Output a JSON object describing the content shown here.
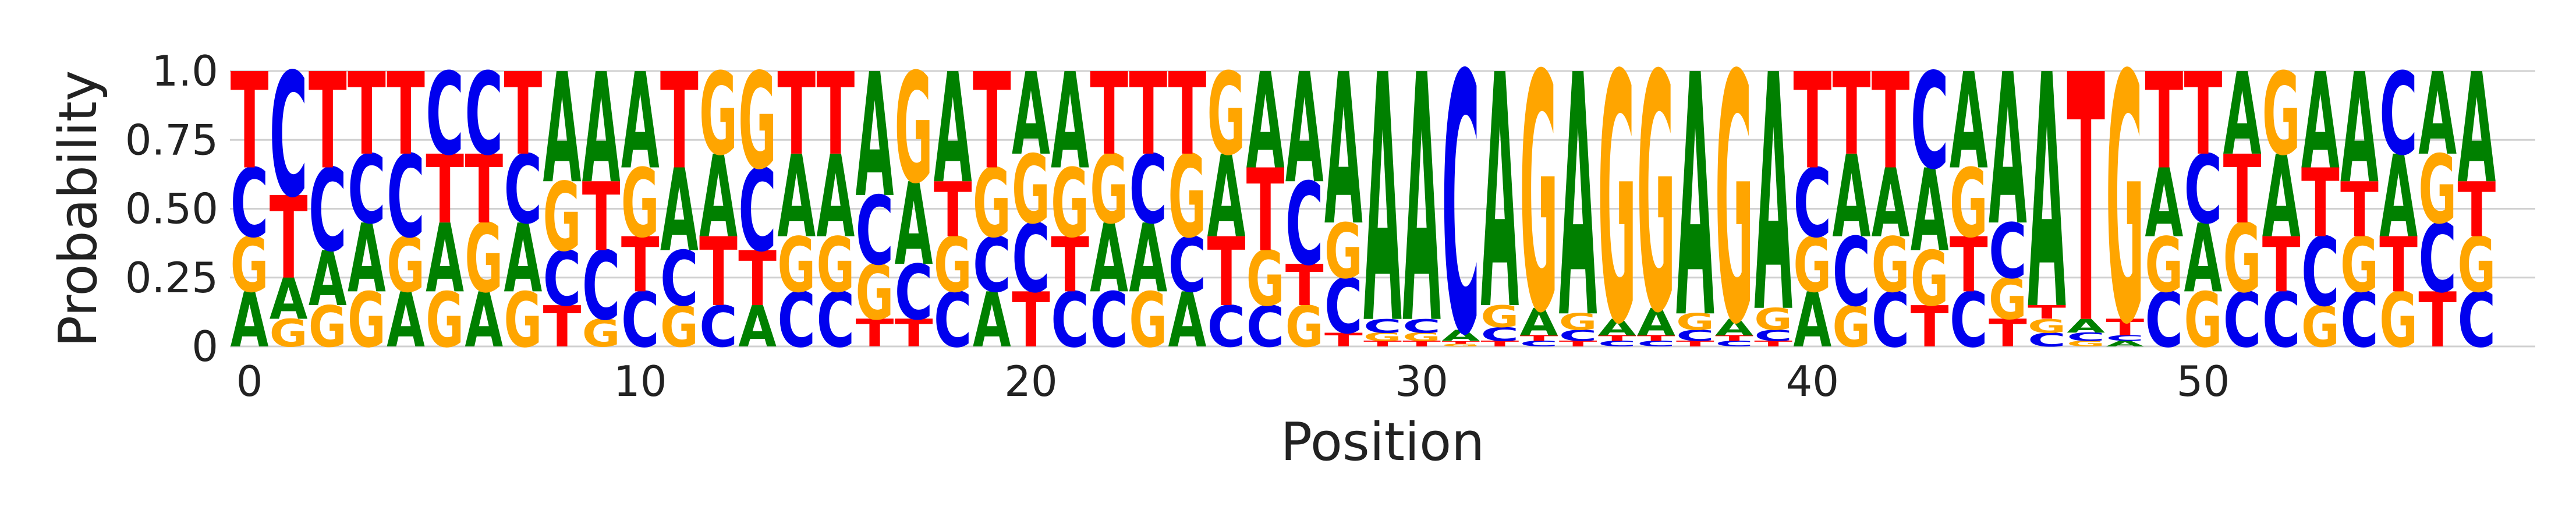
{
  "chart_data": {
    "type": "sequence-logo",
    "xlabel": "Position",
    "ylabel": "Probability",
    "xlim": [
      -0.5,
      58.5
    ],
    "ylim": [
      0,
      1
    ],
    "x_ticks": [
      0,
      10,
      20,
      30,
      40,
      50
    ],
    "y_ticks": [
      0,
      0.25,
      0.5,
      0.75,
      1.0
    ],
    "y_tick_labels": [
      "0",
      "0.25",
      "0.50",
      "0.75",
      "1.0"
    ],
    "grid": "horizontal",
    "letter_colors": {
      "A": "#008000",
      "C": "#0000ee",
      "G": "#ffa500",
      "T": "#ff0000"
    },
    "positions": [
      {
        "x": 0,
        "A": 0.2,
        "C": 0.25,
        "G": 0.2,
        "T": 0.35
      },
      {
        "x": 1,
        "A": 0.15,
        "C": 0.45,
        "G": 0.1,
        "T": 0.3
      },
      {
        "x": 2,
        "A": 0.2,
        "C": 0.3,
        "G": 0.15,
        "T": 0.35
      },
      {
        "x": 3,
        "A": 0.25,
        "C": 0.25,
        "G": 0.2,
        "T": 0.3
      },
      {
        "x": 4,
        "A": 0.2,
        "C": 0.3,
        "G": 0.2,
        "T": 0.3
      },
      {
        "x": 5,
        "A": 0.25,
        "C": 0.3,
        "G": 0.2,
        "T": 0.25
      },
      {
        "x": 6,
        "A": 0.2,
        "C": 0.3,
        "G": 0.25,
        "T": 0.25
      },
      {
        "x": 7,
        "A": 0.25,
        "C": 0.25,
        "G": 0.2,
        "T": 0.3
      },
      {
        "x": 8,
        "A": 0.4,
        "C": 0.2,
        "G": 0.25,
        "T": 0.15
      },
      {
        "x": 9,
        "A": 0.4,
        "C": 0.25,
        "G": 0.1,
        "T": 0.25
      },
      {
        "x": 10,
        "A": 0.35,
        "C": 0.2,
        "G": 0.25,
        "T": 0.2
      },
      {
        "x": 11,
        "A": 0.3,
        "C": 0.2,
        "G": 0.15,
        "T": 0.35
      },
      {
        "x": 12,
        "A": 0.3,
        "C": 0.15,
        "G": 0.3,
        "T": 0.25
      },
      {
        "x": 13,
        "A": 0.15,
        "C": 0.3,
        "G": 0.35,
        "T": 0.2
      },
      {
        "x": 14,
        "A": 0.3,
        "C": 0.2,
        "G": 0.2,
        "T": 0.3
      },
      {
        "x": 15,
        "A": 0.3,
        "C": 0.2,
        "G": 0.2,
        "T": 0.3
      },
      {
        "x": 16,
        "A": 0.45,
        "C": 0.25,
        "G": 0.2,
        "T": 0.1
      },
      {
        "x": 17,
        "A": 0.3,
        "C": 0.2,
        "G": 0.4,
        "T": 0.1
      },
      {
        "x": 18,
        "A": 0.4,
        "C": 0.2,
        "G": 0.2,
        "T": 0.2
      },
      {
        "x": 19,
        "A": 0.2,
        "C": 0.2,
        "G": 0.25,
        "T": 0.35
      },
      {
        "x": 20,
        "A": 0.3,
        "C": 0.25,
        "G": 0.25,
        "T": 0.2
      },
      {
        "x": 21,
        "A": 0.35,
        "C": 0.2,
        "G": 0.25,
        "T": 0.2
      },
      {
        "x": 22,
        "A": 0.25,
        "C": 0.2,
        "G": 0.25,
        "T": 0.3
      },
      {
        "x": 23,
        "A": 0.25,
        "C": 0.25,
        "G": 0.2,
        "T": 0.3
      },
      {
        "x": 24,
        "A": 0.2,
        "C": 0.2,
        "G": 0.3,
        "T": 0.3
      },
      {
        "x": 25,
        "A": 0.3,
        "C": 0.15,
        "G": 0.3,
        "T": 0.25
      },
      {
        "x": 26,
        "A": 0.35,
        "C": 0.15,
        "G": 0.2,
        "T": 0.3
      },
      {
        "x": 27,
        "A": 0.4,
        "C": 0.3,
        "G": 0.15,
        "T": 0.15
      },
      {
        "x": 28,
        "A": 0.55,
        "C": 0.2,
        "G": 0.2,
        "T": 0.05
      },
      {
        "x": 29,
        "A": 0.9,
        "C": 0.05,
        "G": 0.03,
        "T": 0.02
      },
      {
        "x": 30,
        "A": 0.9,
        "C": 0.05,
        "G": 0.03,
        "T": 0.02
      },
      {
        "x": 31,
        "A": 0.04,
        "C": 0.94,
        "G": 0.01,
        "T": 0.01
      },
      {
        "x": 32,
        "A": 0.85,
        "C": 0.05,
        "G": 0.08,
        "T": 0.02
      },
      {
        "x": 33,
        "A": 0.1,
        "C": 0.02,
        "G": 0.86,
        "T": 0.02
      },
      {
        "x": 34,
        "A": 0.88,
        "C": 0.04,
        "G": 0.06,
        "T": 0.02
      },
      {
        "x": 35,
        "A": 0.06,
        "C": 0.02,
        "G": 0.9,
        "T": 0.02
      },
      {
        "x": 36,
        "A": 0.1,
        "C": 0.02,
        "G": 0.86,
        "T": 0.02
      },
      {
        "x": 37,
        "A": 0.88,
        "C": 0.04,
        "G": 0.06,
        "T": 0.02
      },
      {
        "x": 38,
        "A": 0.06,
        "C": 0.02,
        "G": 0.9,
        "T": 0.02
      },
      {
        "x": 39,
        "A": 0.86,
        "C": 0.04,
        "G": 0.08,
        "T": 0.02
      },
      {
        "x": 40,
        "A": 0.2,
        "C": 0.25,
        "G": 0.2,
        "T": 0.35
      },
      {
        "x": 41,
        "A": 0.3,
        "C": 0.25,
        "G": 0.15,
        "T": 0.3
      },
      {
        "x": 42,
        "A": 0.25,
        "C": 0.2,
        "G": 0.2,
        "T": 0.35
      },
      {
        "x": 43,
        "A": 0.3,
        "C": 0.35,
        "G": 0.2,
        "T": 0.15
      },
      {
        "x": 44,
        "A": 0.35,
        "C": 0.2,
        "G": 0.25,
        "T": 0.2
      },
      {
        "x": 45,
        "A": 0.55,
        "C": 0.2,
        "G": 0.15,
        "T": 0.1
      },
      {
        "x": 46,
        "A": 0.85,
        "C": 0.05,
        "G": 0.05,
        "T": 0.05
      },
      {
        "x": 47,
        "A": 0.05,
        "C": 0.03,
        "G": 0.02,
        "T": 0.9
      },
      {
        "x": 48,
        "A": 0.02,
        "C": 0.02,
        "G": 0.9,
        "T": 0.06
      },
      {
        "x": 49,
        "A": 0.25,
        "C": 0.2,
        "G": 0.2,
        "T": 0.35
      },
      {
        "x": 50,
        "A": 0.25,
        "C": 0.25,
        "G": 0.2,
        "T": 0.3
      },
      {
        "x": 51,
        "A": 0.3,
        "C": 0.2,
        "G": 0.25,
        "T": 0.25
      },
      {
        "x": 52,
        "A": 0.3,
        "C": 0.2,
        "G": 0.3,
        "T": 0.2
      },
      {
        "x": 53,
        "A": 0.35,
        "C": 0.25,
        "G": 0.15,
        "T": 0.25
      },
      {
        "x": 54,
        "A": 0.4,
        "C": 0.2,
        "G": 0.2,
        "T": 0.2
      },
      {
        "x": 55,
        "A": 0.3,
        "C": 0.3,
        "G": 0.2,
        "T": 0.2
      },
      {
        "x": 56,
        "A": 0.3,
        "C": 0.25,
        "G": 0.25,
        "T": 0.2
      },
      {
        "x": 57,
        "A": 0.4,
        "C": 0.2,
        "G": 0.2,
        "T": 0.2
      }
    ]
  }
}
